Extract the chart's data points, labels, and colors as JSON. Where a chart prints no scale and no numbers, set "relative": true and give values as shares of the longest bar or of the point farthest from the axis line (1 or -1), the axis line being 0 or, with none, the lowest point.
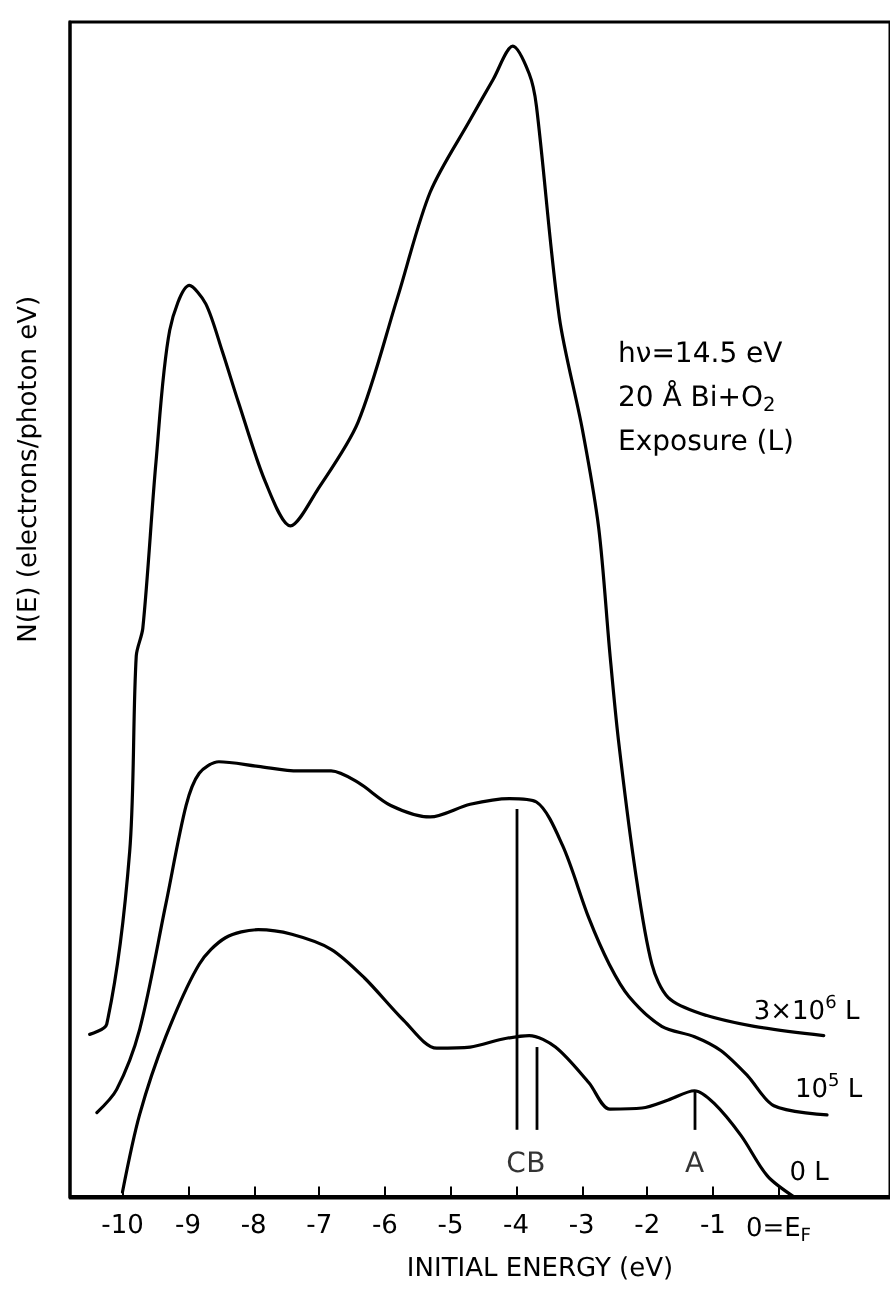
{
  "chart_data": {
    "type": "line",
    "relative": true,
    "xlabel": "INITIAL ENERGY (eV)",
    "ylabel": "N(E) (electrons/photon eV)",
    "xlim": [
      -10.8,
      1.7
    ],
    "xticks": [
      -10,
      -9,
      -8,
      -7,
      -6,
      -5,
      -4,
      -3,
      -2,
      -1,
      {
        "value": 0,
        "label": "0=E$_{F}$"
      }
    ],
    "tick_labels": "x",
    "grid": false,
    "marker": "none",
    "line_style": "solid",
    "annotations": [
      "hν=14.5 eV",
      "20 Å Bi+O$_{2}$",
      "Exposure (L)",
      {
        "text": "C",
        "x": -4.0,
        "y": 0.337
      },
      {
        "text": "B",
        "x": -3.7,
        "y": 0.13
      },
      {
        "text": "A",
        "x": -1.28,
        "y": 0.092
      }
    ],
    "series": [
      {
        "name": "3×10$^{6}$ L",
        "color": "#000000",
        "x": [
          -10.5,
          -10.24,
          -9.89,
          -9.79,
          -9.69,
          -9.49,
          -9.28,
          -8.98,
          -8.73,
          -8.48,
          -8.23,
          -7.82,
          -7.44,
          -7.02,
          -6.41,
          -5.81,
          -5.31,
          -4.7,
          -4.35,
          -4.05,
          -3.8,
          -3.69,
          -3.34,
          -2.99,
          -2.74,
          -2.57,
          -2.44,
          -2.18,
          -1.93,
          -1.68,
          -1.18,
          -0.37,
          0.69
        ],
        "values": [
          0.141,
          0.15,
          0.3,
          0.47,
          0.494,
          0.638,
          0.753,
          0.792,
          0.776,
          0.735,
          0.69,
          0.621,
          0.583,
          0.615,
          0.673,
          0.781,
          0.873,
          0.936,
          0.971,
          1.0,
          0.976,
          0.948,
          0.764,
          0.667,
          0.581,
          0.472,
          0.397,
          0.282,
          0.202,
          0.173,
          0.159,
          0.148,
          0.14
        ]
      },
      {
        "name": "10$^{5}$ L",
        "color": "#000000",
        "x": [
          -10.39,
          -10.09,
          -9.74,
          -9.34,
          -9.03,
          -8.83,
          -8.53,
          -7.93,
          -7.32,
          -6.82,
          -6.41,
          -5.91,
          -5.31,
          -4.7,
          -4.1,
          -3.69,
          -3.29,
          -2.89,
          -2.58,
          -2.28,
          -1.78,
          -1.28,
          -0.88,
          -0.47,
          -0.07,
          0.74
        ],
        "values": [
          0.073,
          0.093,
          0.145,
          0.254,
          0.34,
          0.368,
          0.378,
          0.374,
          0.37,
          0.37,
          0.36,
          0.34,
          0.33,
          0.341,
          0.346,
          0.343,
          0.305,
          0.242,
          0.202,
          0.174,
          0.148,
          0.139,
          0.127,
          0.105,
          0.079,
          0.071
        ]
      },
      {
        "name": "0 L",
        "color": "#000000",
        "x": [
          -10.0,
          -9.74,
          -9.34,
          -8.83,
          -8.43,
          -7.93,
          -7.42,
          -6.82,
          -6.31,
          -5.71,
          -5.21,
          -4.7,
          -4.2,
          -3.8,
          -3.4,
          -2.89,
          -2.57,
          -2.08,
          -1.68,
          -1.28,
          -0.98,
          -0.57,
          -0.17,
          0.23
        ],
        "values": [
          0.004,
          0.071,
          0.139,
          0.202,
          0.225,
          0.232,
          0.228,
          0.215,
          0.19,
          0.153,
          0.129,
          0.13,
          0.137,
          0.14,
          0.13,
          0.099,
          0.076,
          0.077,
          0.084,
          0.092,
          0.081,
          0.053,
          0.018,
          0.0
        ]
      }
    ]
  }
}
